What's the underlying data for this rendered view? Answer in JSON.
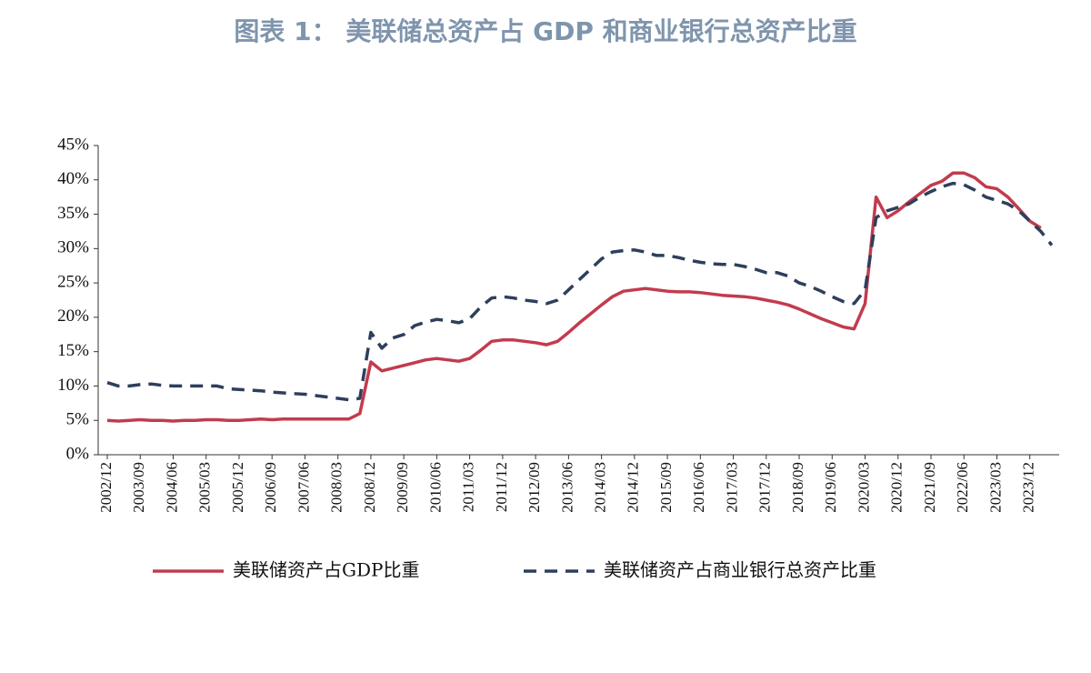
{
  "chart_data": {
    "type": "line",
    "title": "图表 1：  美联储总资产占 GDP 和商业银行总资产比重",
    "categories": [
      "2002/12",
      null,
      null,
      "2003/09",
      null,
      null,
      "2004/06",
      null,
      null,
      "2005/03",
      null,
      null,
      "2005/12",
      null,
      null,
      "2006/09",
      null,
      null,
      "2007/06",
      null,
      null,
      "2008/03",
      null,
      null,
      "2008/12",
      null,
      null,
      "2009/09",
      null,
      null,
      "2010/06",
      null,
      null,
      "2011/03",
      null,
      null,
      "2011/12",
      null,
      null,
      "2012/09",
      null,
      null,
      "2013/06",
      null,
      null,
      "2014/03",
      null,
      null,
      "2014/12",
      null,
      null,
      "2015/09",
      null,
      null,
      "2016/06",
      null,
      null,
      "2017/03",
      null,
      null,
      "2017/12",
      null,
      null,
      "2018/09",
      null,
      null,
      "2019/06",
      null,
      null,
      "2020/03",
      null,
      null,
      "2020/12",
      null,
      null,
      "2021/09",
      null,
      null,
      "2022/06",
      null,
      null,
      "2023/03",
      null,
      null,
      "2023/12",
      null,
      null
    ],
    "series": [
      {
        "name": "美联储资产占GDP比重",
        "color": "#c23b4e",
        "dash": false,
        "values": [
          5.0,
          4.9,
          5.0,
          5.1,
          5.0,
          5.0,
          4.9,
          5.0,
          5.0,
          5.1,
          5.1,
          5.0,
          5.0,
          5.1,
          5.2,
          5.1,
          5.2,
          5.2,
          5.2,
          5.2,
          5.2,
          5.2,
          5.2,
          6.0,
          13.5,
          12.2,
          12.6,
          13.0,
          13.4,
          13.8,
          14.0,
          13.8,
          13.6,
          14.0,
          15.2,
          16.5,
          16.7,
          16.7,
          16.5,
          16.3,
          16.0,
          16.5,
          17.8,
          19.2,
          20.5,
          21.8,
          23.0,
          23.8,
          24.0,
          24.2,
          24.0,
          23.8,
          23.7,
          23.7,
          23.6,
          23.4,
          23.2,
          23.1,
          23.0,
          22.8,
          22.5,
          22.2,
          21.8,
          21.2,
          20.5,
          19.8,
          19.2,
          18.6,
          18.3,
          22.0,
          37.5,
          34.5,
          35.5,
          36.8,
          38.0,
          39.2,
          39.8,
          41.0,
          41.0,
          40.3,
          39.0,
          38.7,
          37.5,
          35.8,
          34.0,
          33.0,
          null
        ]
      },
      {
        "name": "美联储资产占商业银行总资产比重",
        "color": "#2e3f5c",
        "dash": true,
        "values": [
          10.5,
          10.0,
          10.0,
          10.2,
          10.3,
          10.1,
          10.0,
          10.0,
          10.0,
          10.0,
          10.0,
          9.6,
          9.5,
          9.4,
          9.3,
          9.1,
          9.0,
          8.9,
          8.8,
          8.6,
          8.4,
          8.2,
          8.0,
          8.2,
          17.8,
          15.5,
          17.0,
          17.5,
          18.8,
          19.3,
          19.7,
          19.5,
          19.2,
          19.8,
          21.5,
          22.8,
          23.0,
          22.8,
          22.5,
          22.3,
          22.0,
          22.5,
          24.0,
          25.5,
          27.0,
          28.5,
          29.5,
          29.7,
          29.8,
          29.5,
          29.0,
          29.0,
          28.7,
          28.3,
          28.0,
          27.8,
          27.7,
          27.7,
          27.4,
          27.0,
          26.5,
          26.5,
          26.0,
          25.0,
          24.5,
          23.8,
          23.0,
          22.3,
          22.0,
          24.0,
          34.5,
          35.5,
          36.0,
          36.5,
          37.5,
          38.3,
          39.0,
          39.5,
          39.3,
          38.5,
          37.5,
          37.0,
          36.5,
          35.5,
          34.0,
          32.5,
          30.5
        ]
      }
    ],
    "ylim": [
      0,
      45
    ],
    "yticks": [
      {
        "value": 0,
        "label": "0%"
      },
      {
        "value": 5,
        "label": "5%"
      },
      {
        "value": 10,
        "label": "10%"
      },
      {
        "value": 15,
        "label": "15%"
      },
      {
        "value": 20,
        "label": "20%"
      },
      {
        "value": 25,
        "label": "25%"
      },
      {
        "value": 30,
        "label": "30%"
      },
      {
        "value": 35,
        "label": "35%"
      },
      {
        "value": 40,
        "label": "40%"
      },
      {
        "value": 45,
        "label": "45%"
      }
    ],
    "legend": "bottom"
  }
}
